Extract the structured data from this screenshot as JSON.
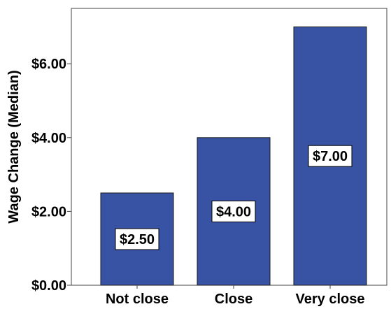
{
  "chart_data": {
    "type": "bar",
    "title": "",
    "xlabel": "",
    "ylabel": "Wage Change (Median)",
    "categories": [
      "Not close",
      "Close",
      "Very close"
    ],
    "values": [
      2.5,
      4.0,
      7.0
    ],
    "data_labels": [
      "$2.50",
      "$4.00",
      "$7.00"
    ],
    "y_ticks": [
      0,
      2,
      4,
      6
    ],
    "y_tick_labels": [
      "$0.00",
      "$2.00",
      "$4.00",
      "$6.00"
    ],
    "ylim": [
      0,
      7.5
    ],
    "grid": false,
    "bar_color": "#3953a4",
    "bar_edge_color": "#1a1a1a"
  }
}
